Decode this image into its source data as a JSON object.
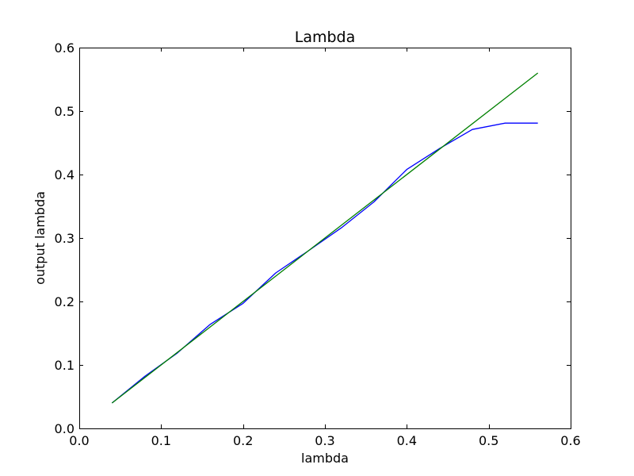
{
  "chart_data": {
    "type": "line",
    "title": "Lambda",
    "xlabel": "lambda",
    "ylabel": "output lambda",
    "xlim": [
      0.0,
      0.6
    ],
    "ylim": [
      0.0,
      0.6
    ],
    "xticks": [
      "0.0",
      "0.1",
      "0.2",
      "0.3",
      "0.4",
      "0.5",
      "0.6"
    ],
    "yticks": [
      "0.0",
      "0.1",
      "0.2",
      "0.3",
      "0.4",
      "0.5",
      "0.6"
    ],
    "grid": false,
    "series": [
      {
        "color": "#0000ff",
        "x": [
          0.04,
          0.08,
          0.12,
          0.16,
          0.2,
          0.24,
          0.28,
          0.32,
          0.36,
          0.4,
          0.44,
          0.48,
          0.52,
          0.56
        ],
        "y": [
          0.04,
          0.082,
          0.119,
          0.164,
          0.197,
          0.245,
          0.28,
          0.316,
          0.357,
          0.408,
          0.441,
          0.471,
          0.481,
          0.481
        ]
      },
      {
        "color": "#008000",
        "x": [
          0.04,
          0.56
        ],
        "y": [
          0.04,
          0.56
        ]
      }
    ]
  }
}
